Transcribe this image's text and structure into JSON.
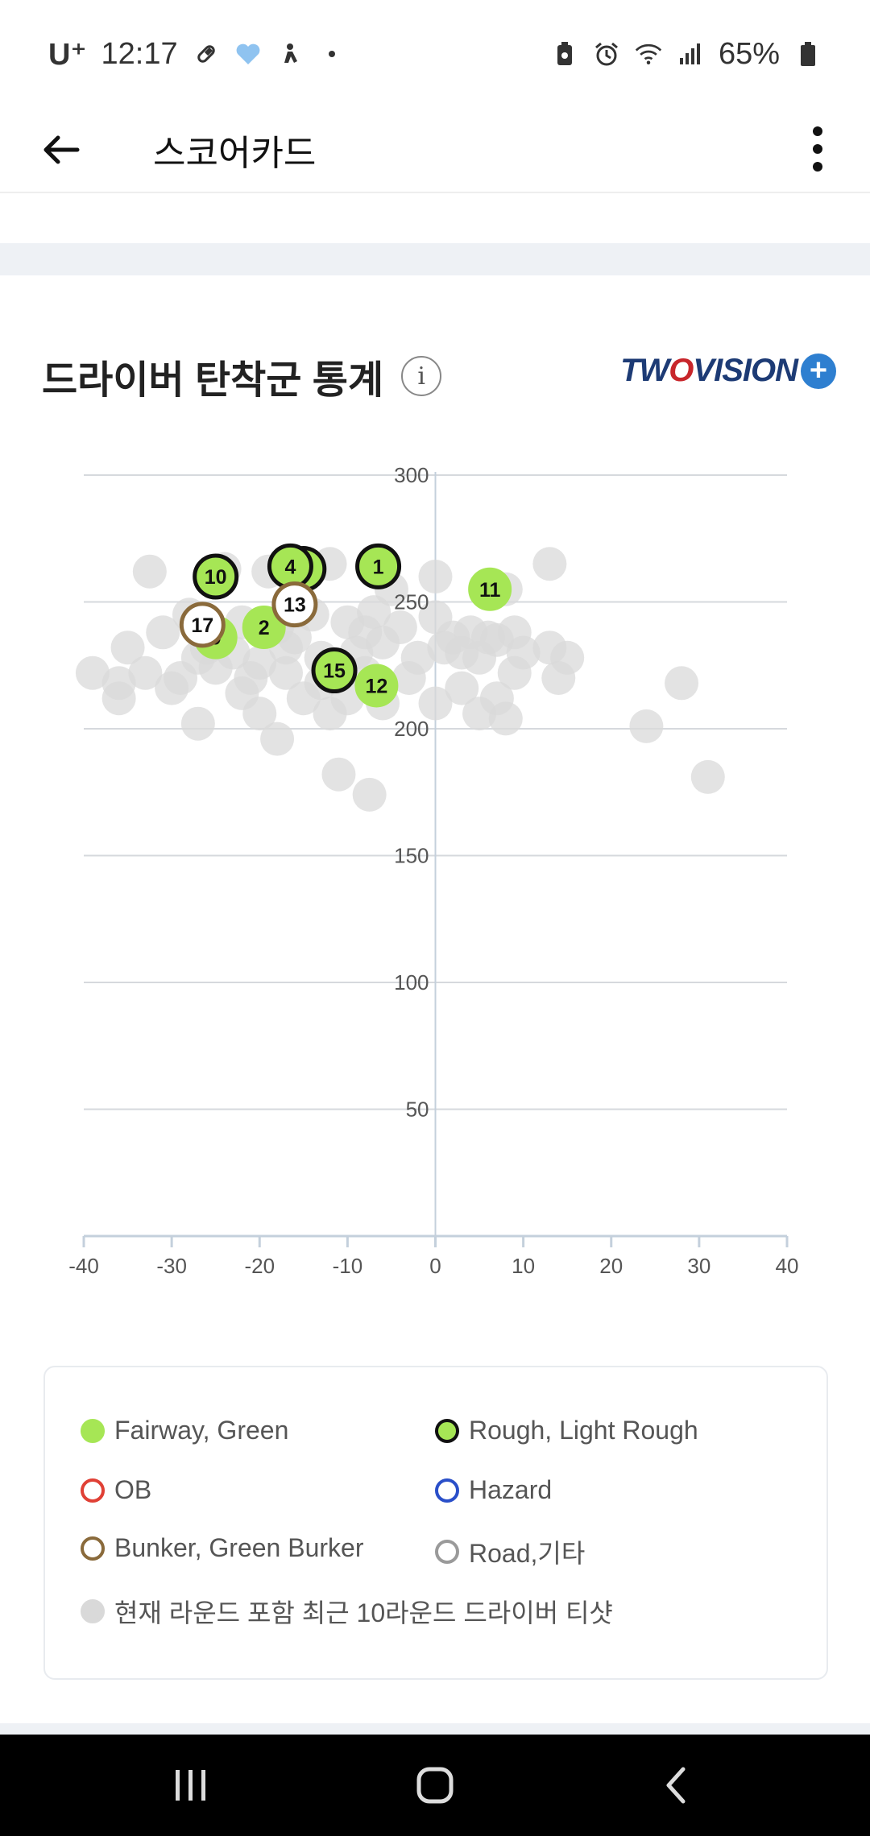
{
  "status_bar": {
    "carrier": "U⁺",
    "time": "12:17",
    "battery": "65%",
    "left_icons": [
      "pill-icon",
      "heart-badge-icon",
      "figure-icon",
      "dot-icon"
    ],
    "right_icons": [
      "battery-saver-icon",
      "alarm-icon",
      "wifi-icon",
      "signal-icon",
      "battery-icon"
    ]
  },
  "appbar": {
    "title": "스코어카드",
    "back_icon": "arrow-left-icon",
    "menu_icon": "more-vertical-icon"
  },
  "section": {
    "title": "드라이버 탄착군 통계",
    "info_icon": "i",
    "logo": {
      "pre": "TW",
      "o": "O",
      "post": "VISION",
      "plus": "+"
    }
  },
  "chart_data": {
    "type": "scatter",
    "title": "",
    "xlabel": "",
    "ylabel": "",
    "xlim": [
      -40,
      40
    ],
    "ylim": [
      0,
      300
    ],
    "x_ticks": [
      "-40",
      "-30",
      "-20",
      "-10",
      "0",
      "10",
      "20",
      "30",
      "40"
    ],
    "y_ticks": [
      "300",
      "250",
      "200",
      "150",
      "100",
      "50"
    ],
    "y_tick_values": [
      300,
      250,
      200,
      150,
      100,
      50
    ],
    "x_tick_values": [
      -40,
      -30,
      -20,
      -10,
      0,
      10,
      20,
      30,
      40
    ],
    "grid": true,
    "colors": {
      "fairway": "#a6e655",
      "rough_border": "#111111",
      "bunker_border": "#8a6a3b",
      "history": "#d9d9d9"
    },
    "history_shots": [
      {
        "x": -32.5,
        "y": 262
      },
      {
        "x": -24,
        "y": 263
      },
      {
        "x": -19,
        "y": 262
      },
      {
        "x": -12,
        "y": 265
      },
      {
        "x": -5,
        "y": 255
      },
      {
        "x": 0,
        "y": 260
      },
      {
        "x": 8,
        "y": 255
      },
      {
        "x": 13,
        "y": 265
      },
      {
        "x": -28,
        "y": 245
      },
      {
        "x": -26,
        "y": 238
      },
      {
        "x": -22,
        "y": 242
      },
      {
        "x": -18,
        "y": 240
      },
      {
        "x": -14,
        "y": 245
      },
      {
        "x": -10,
        "y": 242
      },
      {
        "x": -7,
        "y": 246
      },
      {
        "x": -4,
        "y": 240
      },
      {
        "x": 0,
        "y": 244
      },
      {
        "x": 4,
        "y": 238
      },
      {
        "x": 7,
        "y": 235
      },
      {
        "x": 9,
        "y": 238
      },
      {
        "x": -35,
        "y": 232
      },
      {
        "x": -31,
        "y": 238
      },
      {
        "x": -27,
        "y": 228
      },
      {
        "x": -23,
        "y": 230
      },
      {
        "x": -20,
        "y": 226
      },
      {
        "x": -17,
        "y": 232
      },
      {
        "x": -13,
        "y": 228
      },
      {
        "x": -9,
        "y": 230
      },
      {
        "x": -6,
        "y": 234
      },
      {
        "x": -2,
        "y": 228
      },
      {
        "x": 1,
        "y": 232
      },
      {
        "x": 3,
        "y": 230
      },
      {
        "x": 5,
        "y": 228
      },
      {
        "x": 10,
        "y": 230
      },
      {
        "x": 13,
        "y": 232
      },
      {
        "x": 15,
        "y": 228
      },
      {
        "x": -39,
        "y": 222
      },
      {
        "x": -36,
        "y": 218
      },
      {
        "x": -33,
        "y": 222
      },
      {
        "x": -29,
        "y": 220
      },
      {
        "x": -25,
        "y": 224
      },
      {
        "x": -21,
        "y": 220
      },
      {
        "x": -17,
        "y": 222
      },
      {
        "x": -13,
        "y": 218
      },
      {
        "x": -8,
        "y": 222
      },
      {
        "x": -3,
        "y": 220
      },
      {
        "x": 3,
        "y": 216
      },
      {
        "x": 7,
        "y": 212
      },
      {
        "x": 9,
        "y": 222
      },
      {
        "x": 14,
        "y": 220
      },
      {
        "x": 28,
        "y": 218
      },
      {
        "x": -36,
        "y": 212
      },
      {
        "x": -30,
        "y": 216
      },
      {
        "x": -22,
        "y": 214
      },
      {
        "x": -15,
        "y": 212
      },
      {
        "x": -10,
        "y": 212
      },
      {
        "x": -6,
        "y": 210
      },
      {
        "x": 0,
        "y": 210
      },
      {
        "x": 5,
        "y": 206
      },
      {
        "x": 8,
        "y": 204
      },
      {
        "x": -27,
        "y": 202
      },
      {
        "x": -20,
        "y": 206
      },
      {
        "x": -12,
        "y": 206
      },
      {
        "x": -18,
        "y": 196
      },
      {
        "x": 24,
        "y": 201
      },
      {
        "x": -11,
        "y": 182
      },
      {
        "x": -7.5,
        "y": 174
      },
      {
        "x": 31,
        "y": 181
      },
      {
        "x": -26,
        "y": 232
      },
      {
        "x": -16,
        "y": 236
      },
      {
        "x": -8,
        "y": 238
      },
      {
        "x": 2,
        "y": 236
      },
      {
        "x": 6,
        "y": 236
      }
    ],
    "round_shots": [
      {
        "label": "1",
        "x": -6.5,
        "y": 264,
        "lie": "Rough, Light Rough"
      },
      {
        "label": "2",
        "x": -19.5,
        "y": 240,
        "lie": "Fairway, Green"
      },
      {
        "label": "3",
        "x": -15,
        "y": 263,
        "lie": "Rough, Light Rough"
      },
      {
        "label": "4",
        "x": -16.5,
        "y": 264,
        "lie": "Rough, Light Rough"
      },
      {
        "label": "9",
        "x": -25,
        "y": 236,
        "lie": "Fairway, Green"
      },
      {
        "label": "10",
        "x": -25,
        "y": 260,
        "lie": "Rough, Light Rough"
      },
      {
        "label": "11",
        "x": 6.2,
        "y": 255,
        "lie": "Fairway, Green"
      },
      {
        "label": "12",
        "x": -6.7,
        "y": 217,
        "lie": "Fairway, Green"
      },
      {
        "label": "13",
        "x": -16,
        "y": 249,
        "lie": "Bunker, Green Burker"
      },
      {
        "label": "15",
        "x": -11.5,
        "y": 223,
        "lie": "Rough, Light Rough"
      },
      {
        "label": "17",
        "x": -26.5,
        "y": 241,
        "lie": "Bunker, Green Burker"
      }
    ]
  },
  "legend": [
    {
      "label": "Fairway, Green",
      "fill": "#a6e655",
      "border": "#a6e655"
    },
    {
      "label": "Rough, Light Rough",
      "fill": "#a6e655",
      "border": "#111111"
    },
    {
      "label": "OB",
      "fill": "#ffffff",
      "border": "#e04035"
    },
    {
      "label": "Hazard",
      "fill": "#ffffff",
      "border": "#2a4fc9"
    },
    {
      "label": "Bunker, Green Burker",
      "fill": "#ffffff",
      "border": "#8a6a3b"
    },
    {
      "label": "Road,기타",
      "fill": "#ffffff",
      "border": "#9a9a9a"
    },
    {
      "label": "현재 라운드 포함 최근 10라운드 드라이버 티샷",
      "fill": "#d9d9d9",
      "border": "#d9d9d9"
    }
  ],
  "nav": {
    "recents_icon": "recents-icon",
    "home_icon": "home-icon",
    "back_icon": "back-chevron-icon"
  }
}
